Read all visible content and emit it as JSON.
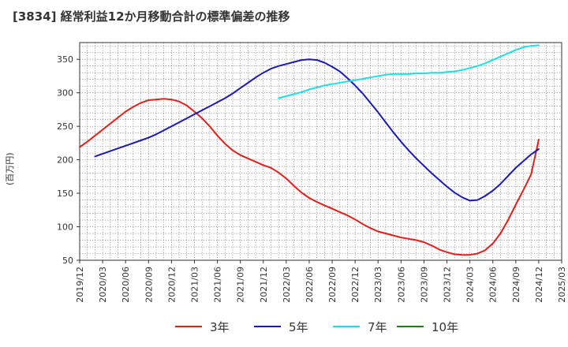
{
  "title": "[3834]  経常利益12か月移動合計の標準偏差の推移",
  "ylabel": "(百万円)",
  "chart_data": {
    "type": "line",
    "title": "[3834]  経常利益12か月移動合計の標準偏差の推移",
    "ylabel": "(百万円)",
    "ylim": [
      50,
      375
    ],
    "yticks": [
      50,
      100,
      150,
      200,
      250,
      300,
      350
    ],
    "xlim": [
      "2019-12",
      "2025-03"
    ],
    "xticks": [
      "2019/12",
      "2020/03",
      "2020/06",
      "2020/09",
      "2020/12",
      "2021/03",
      "2021/06",
      "2021/09",
      "2021/12",
      "2022/03",
      "2022/06",
      "2022/09",
      "2022/12",
      "2023/03",
      "2023/06",
      "2023/09",
      "2023/12",
      "2024/03",
      "2024/06",
      "2024/09",
      "2024/12",
      "2025/03"
    ],
    "grid": true,
    "legend_position": "bottom",
    "series": [
      {
        "name": "3年",
        "color": "#e0201b",
        "x": [
          "2019-12",
          "2020-01",
          "2020-02",
          "2020-03",
          "2020-04",
          "2020-05",
          "2020-06",
          "2020-07",
          "2020-08",
          "2020-09",
          "2020-10",
          "2020-11",
          "2020-12",
          "2021-01",
          "2021-02",
          "2021-03",
          "2021-04",
          "2021-05",
          "2021-06",
          "2021-07",
          "2021-08",
          "2021-09",
          "2021-10",
          "2021-11",
          "2021-12",
          "2022-01",
          "2022-02",
          "2022-03",
          "2022-04",
          "2022-05",
          "2022-06",
          "2022-07",
          "2022-08",
          "2022-09",
          "2022-10",
          "2022-11",
          "2022-12",
          "2023-01",
          "2023-02",
          "2023-03",
          "2023-04",
          "2023-05",
          "2023-06",
          "2023-07",
          "2023-08",
          "2023-09",
          "2023-10",
          "2023-11",
          "2023-12",
          "2024-01",
          "2024-02",
          "2024-03",
          "2024-04",
          "2024-05",
          "2024-06",
          "2024-07",
          "2024-08",
          "2024-09",
          "2024-10",
          "2024-11",
          "2024-12"
        ],
        "values": [
          219,
          227,
          236,
          245,
          254,
          263,
          272,
          279,
          285,
          289,
          290,
          291,
          290,
          287,
          281,
          272,
          262,
          250,
          236,
          224,
          214,
          207,
          202,
          197,
          192,
          188,
          181,
          172,
          161,
          151,
          143,
          137,
          132,
          127,
          122,
          117,
          111,
          104,
          98,
          93,
          90,
          87,
          84,
          82,
          80,
          77,
          72,
          66,
          62,
          59,
          58,
          58,
          60,
          65,
          75,
          90,
          110,
          133,
          155,
          178,
          200
        ],
        "values_tail": [
          230
        ]
      },
      {
        "name": "5年",
        "color": "#1b1bb3",
        "x": [
          "2020-02",
          "2020-03",
          "2020-04",
          "2020-05",
          "2020-06",
          "2020-07",
          "2020-08",
          "2020-09",
          "2020-10",
          "2020-11",
          "2020-12",
          "2021-01",
          "2021-02",
          "2021-03",
          "2021-04",
          "2021-05",
          "2021-06",
          "2021-07",
          "2021-08",
          "2021-09",
          "2021-10",
          "2021-11",
          "2021-12",
          "2022-01",
          "2022-02",
          "2022-03",
          "2022-04",
          "2022-05",
          "2022-06",
          "2022-07",
          "2022-08",
          "2022-09",
          "2022-10",
          "2022-11",
          "2022-12",
          "2023-01",
          "2023-02",
          "2023-03",
          "2023-04",
          "2023-05",
          "2023-06",
          "2023-07",
          "2023-08",
          "2023-09",
          "2023-10",
          "2023-11",
          "2023-12",
          "2024-01",
          "2024-02",
          "2024-03",
          "2024-04",
          "2024-05",
          "2024-06",
          "2024-07",
          "2024-08",
          "2024-09",
          "2024-10",
          "2024-11",
          "2024-12"
        ],
        "values": [
          205,
          209,
          213,
          217,
          221,
          225,
          229,
          233,
          238,
          244,
          250,
          256,
          262,
          268,
          274,
          280,
          286,
          292,
          299,
          307,
          315,
          323,
          330,
          336,
          340,
          343,
          346,
          349,
          350,
          349,
          345,
          339,
          332,
          322,
          311,
          299,
          285,
          271,
          256,
          241,
          227,
          214,
          202,
          191,
          180,
          170,
          160,
          151,
          144,
          139,
          140,
          146,
          154,
          164,
          176,
          188,
          198,
          208,
          216
        ],
        "values_tail": []
      },
      {
        "name": "7年",
        "color": "#1be0e8",
        "x": [
          "2022-02",
          "2022-03",
          "2022-04",
          "2022-05",
          "2022-06",
          "2022-07",
          "2022-08",
          "2022-09",
          "2022-10",
          "2022-11",
          "2022-12",
          "2023-01",
          "2023-02",
          "2023-03",
          "2023-04",
          "2023-05",
          "2023-06",
          "2023-07",
          "2023-08",
          "2023-09",
          "2023-10",
          "2023-11",
          "2023-12",
          "2024-01",
          "2024-02",
          "2024-03",
          "2024-04",
          "2024-05",
          "2024-06",
          "2024-07",
          "2024-08",
          "2024-09",
          "2024-10",
          "2024-11",
          "2024-12"
        ],
        "values": [
          292,
          295,
          298,
          301,
          305,
          308,
          311,
          313,
          315,
          317,
          319,
          321,
          323,
          325,
          327,
          328,
          328,
          328,
          329,
          329,
          330,
          330,
          331,
          332,
          334,
          337,
          340,
          344,
          349,
          354,
          359,
          364,
          368,
          370,
          371
        ],
        "values_tail": []
      },
      {
        "name": "10年",
        "color": "#1a7f1a",
        "x": [],
        "values": [],
        "values_tail": []
      }
    ]
  }
}
